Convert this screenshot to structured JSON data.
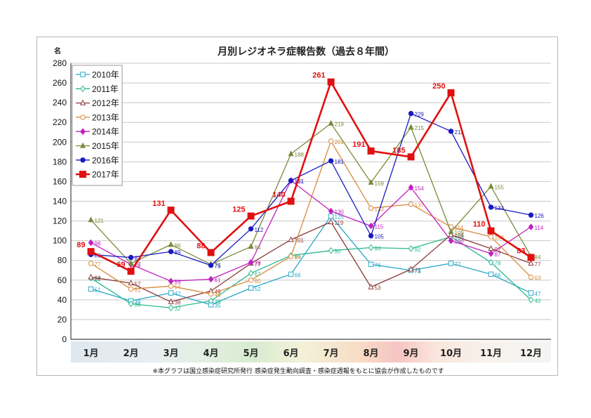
{
  "chart_data": {
    "type": "line",
    "title": "月別レジオネラ症報告数（過去８年間）",
    "ylabel": "名",
    "ylim": [
      0,
      280
    ],
    "yticks": [
      0,
      20,
      40,
      60,
      80,
      100,
      120,
      140,
      160,
      180,
      200,
      220,
      240,
      260,
      280
    ],
    "grid": "horizontal",
    "legend_position": "top-left",
    "categories": [
      "1月",
      "2月",
      "3月",
      "4月",
      "5月",
      "6月",
      "7月",
      "8月",
      "9月",
      "10月",
      "11月",
      "12月"
    ],
    "note": "※本グラフは国立感染症研究所発行 感染症発生動向調査・感染症週報をもとに協会が作成したものです",
    "series": [
      {
        "name": "2010年",
        "color": "#29a8c8",
        "marker": "square-open",
        "values": [
          51,
          39,
          47,
          35,
          52,
          66,
          125,
          76,
          70,
          77,
          66,
          47
        ]
      },
      {
        "name": "2011年",
        "color": "#2db88f",
        "marker": "diamond-open",
        "values": [
          62,
          36,
          32,
          39,
          67,
          85,
          90,
          93,
          92,
          104,
          78,
          40
        ]
      },
      {
        "name": "2012年",
        "color": "#8b3a3a",
        "marker": "triangle-open",
        "values": [
          63,
          57,
          38,
          49,
          77,
          101,
          119,
          53,
          71,
          106,
          92,
          77
        ]
      },
      {
        "name": "2013年",
        "color": "#d98a3a",
        "marker": "circle-open",
        "values": [
          77,
          51,
          54,
          46,
          60,
          84,
          201,
          133,
          137,
          114,
          104,
          63
        ]
      },
      {
        "name": "2014年",
        "color": "#c020c0",
        "marker": "diamond",
        "values": [
          98,
          76,
          59,
          61,
          78,
          161,
          130,
          115,
          154,
          100,
          87,
          114
        ]
      },
      {
        "name": "2015年",
        "color": "#7a8a3a",
        "marker": "triangle",
        "values": [
          121,
          77,
          96,
          76,
          94,
          188,
          219,
          159,
          215,
          109,
          155,
          84
        ]
      },
      {
        "name": "2016年",
        "color": "#1a1ac0",
        "marker": "circle",
        "values": [
          86,
          83,
          89,
          75,
          112,
          161,
          181,
          105,
          229,
          211,
          134,
          126
        ]
      },
      {
        "name": "2017年",
        "color": "#e01010",
        "marker": "square",
        "values": [
          89,
          69,
          131,
          88,
          125,
          140,
          261,
          191,
          185,
          250,
          110,
          83
        ]
      }
    ]
  }
}
